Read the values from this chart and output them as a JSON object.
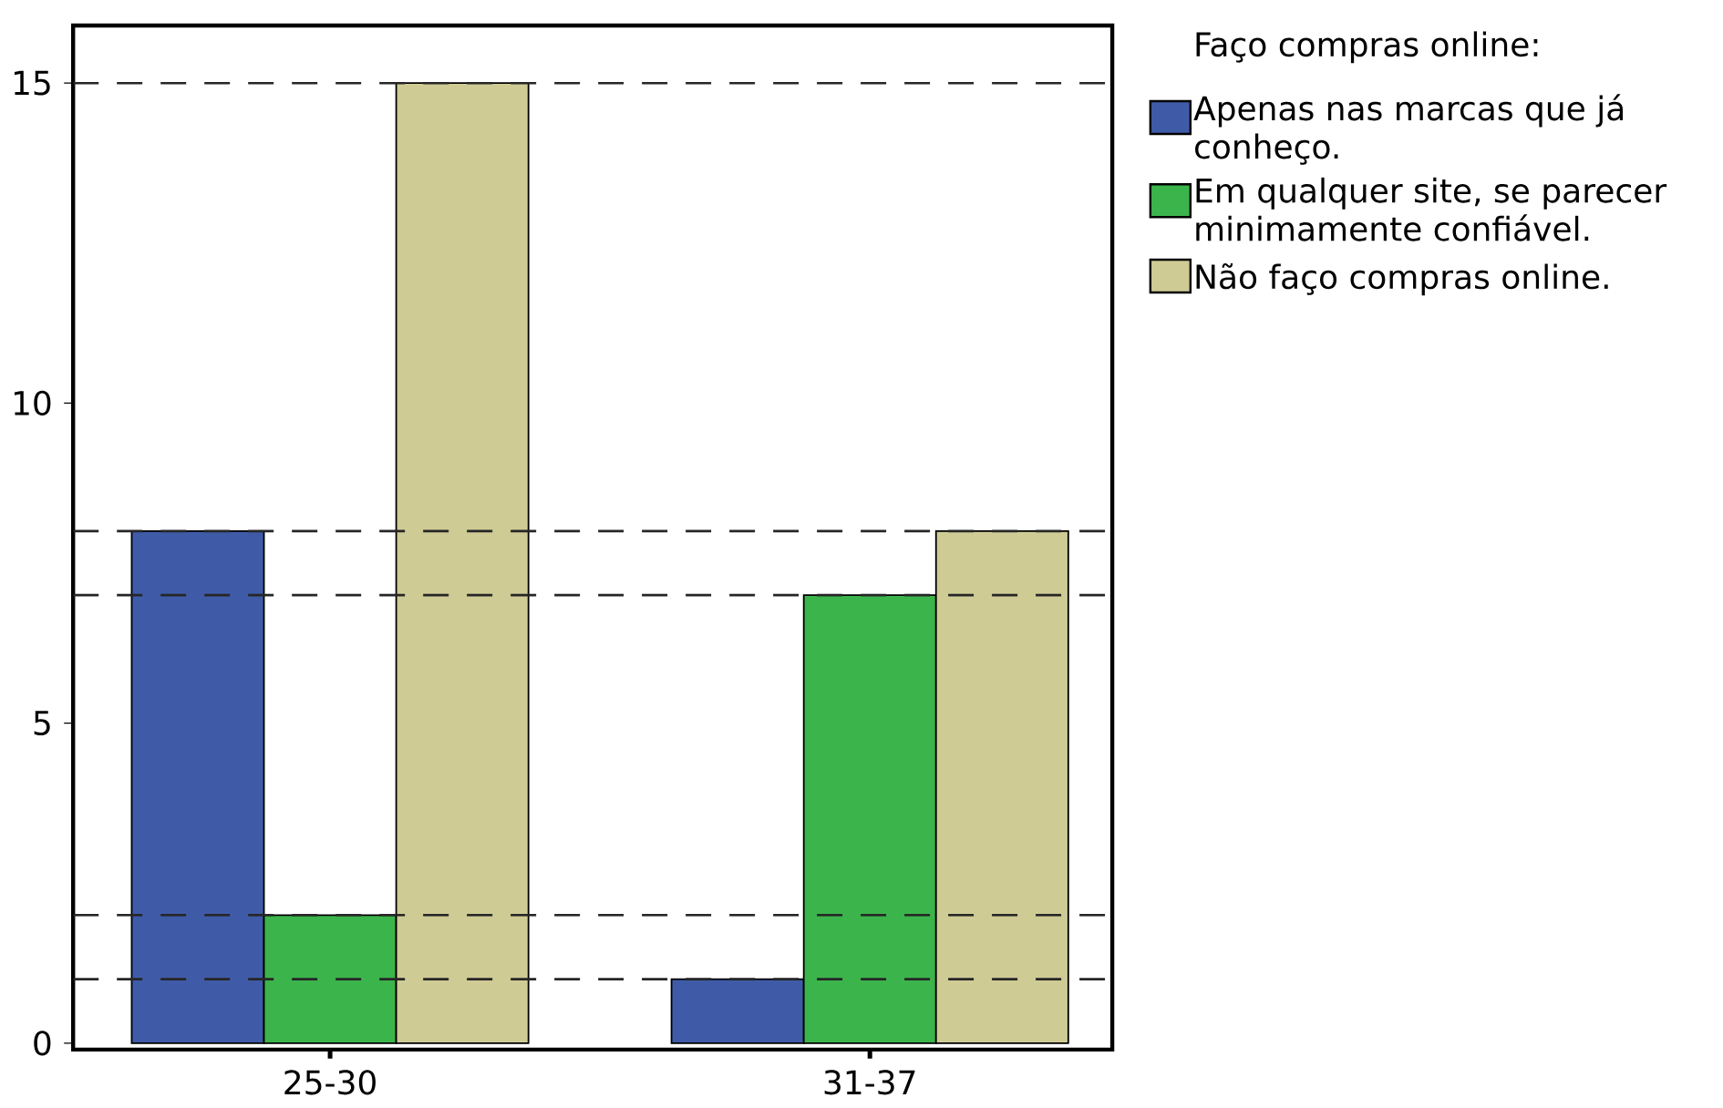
{
  "chart_data": {
    "type": "bar",
    "legend_title": "Faço compras online:",
    "categories": [
      "25-30",
      "31-37"
    ],
    "series": [
      {
        "name": "Apenas nas marcas que já conheço.",
        "color": "#3f5ba8",
        "values": [
          8,
          1
        ]
      },
      {
        "name": "Em qualquer site, se parecer minimamente confiável.",
        "color": "#3cb44c",
        "values": [
          2,
          7
        ]
      },
      {
        "name": "Não faço compras online.",
        "color": "#cfcb95",
        "values": [
          15,
          8
        ]
      }
    ],
    "ylim": [
      -0.1,
      15.9
    ],
    "yticks": [
      0,
      5,
      10,
      15
    ],
    "ref_lines": [
      {
        "axis": "y",
        "value": 15,
        "line_style": "dashed"
      },
      {
        "axis": "y",
        "value": 8,
        "line_style": "dashed"
      },
      {
        "axis": "y",
        "value": 7,
        "line_style": "dashed"
      },
      {
        "axis": "y",
        "value": 2,
        "line_style": "dashed"
      },
      {
        "axis": "y",
        "value": 1,
        "line_style": "dashed"
      }
    ],
    "grid": false,
    "legend": "top right"
  }
}
